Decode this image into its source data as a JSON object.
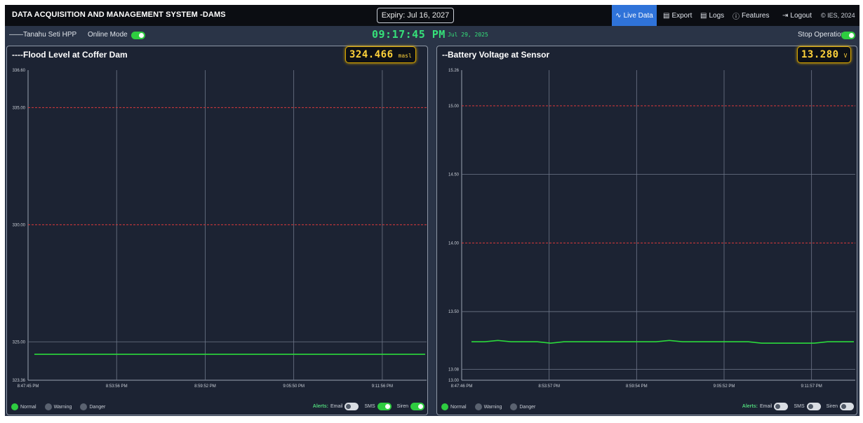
{
  "header": {
    "title": "DATA ACQUISITION AND MANAGEMENT SYSTEM -DAMS",
    "expiry": "Expiry: Jul 16, 2027",
    "nav": {
      "live": "Live Data",
      "export": "Export",
      "logs": "Logs",
      "features": "Features",
      "logout": "Logout",
      "copyright": "© IES, 2024"
    }
  },
  "subbar": {
    "station": "——Tanahu Seti HPP",
    "online_mode": "Online Mode",
    "online_mode_on": true,
    "time": "09:17:45 PM",
    "date": "Jul 29, 2025",
    "stop_operation": "Stop Operation",
    "stop_operation_on": true
  },
  "colors": {
    "normal": "#2ecc40",
    "warning": "#5a6270",
    "danger": "#5a6270",
    "series": "#2bd93b",
    "threshold": "#d9393c",
    "readout": "#ffd23a"
  },
  "panels": [
    {
      "title": "----Flood Level at Coffer Dam",
      "value": "324.466",
      "unit": "masl",
      "legend": [
        "Normal",
        "Warning",
        "Danger"
      ],
      "alerts": {
        "label": "Alerts:",
        "items": [
          {
            "label": "Email",
            "on": false
          },
          {
            "label": "SMS",
            "on": true
          },
          {
            "label": "Siren",
            "on": true
          }
        ]
      }
    },
    {
      "title": "--Battery Voltage at Sensor",
      "value": "13.280",
      "unit": "V",
      "legend": [
        "Normal",
        "Warning",
        "Danger"
      ],
      "alerts": {
        "label": "Alerts:",
        "items": [
          {
            "label": "Email",
            "on": false
          },
          {
            "label": "SMS",
            "on": false
          },
          {
            "label": "Siren",
            "on": false
          }
        ]
      }
    }
  ],
  "chart_data": [
    {
      "type": "line",
      "ylim": [
        323.36,
        336.6
      ],
      "y_ticks": [
        "336.60",
        "335.00",
        "330.00",
        "325.00",
        "323.36"
      ],
      "y_tick_values": [
        336.6,
        335.0,
        330.0,
        325.0,
        323.36
      ],
      "x_ticks": [
        "8:47:45 PM",
        "8:53:56 PM",
        "8:59:52 PM",
        "9:05:50 PM",
        "9:11:56 PM"
      ],
      "grid": true,
      "thresholds": [
        335.0,
        330.0
      ],
      "series": [
        {
          "values": [
            324.466,
            324.466,
            324.466,
            324.466,
            324.466,
            324.466,
            324.466
          ]
        }
      ]
    },
    {
      "type": "line",
      "ylim": [
        13.0,
        15.26
      ],
      "y_ticks": [
        "15.26",
        "15.00",
        "14.50",
        "14.00",
        "13.50",
        "13.08",
        "13.00"
      ],
      "y_tick_values": [
        15.26,
        15.0,
        14.5,
        14.0,
        13.5,
        13.08,
        13.0
      ],
      "x_ticks": [
        "8:47:46 PM",
        "8:53:57 PM",
        "8:59:54 PM",
        "9:05:52 PM",
        "9:11:57 PM"
      ],
      "grid": true,
      "thresholds": [
        15.0,
        14.0
      ],
      "series": [
        {
          "values": [
            13.28,
            13.28,
            13.29,
            13.28,
            13.28,
            13.28,
            13.27,
            13.28,
            13.28,
            13.28,
            13.28,
            13.28,
            13.28,
            13.28,
            13.28,
            13.29,
            13.28,
            13.28,
            13.28,
            13.28,
            13.28,
            13.28,
            13.27,
            13.27,
            13.27,
            13.27,
            13.27,
            13.28,
            13.28,
            13.28
          ]
        }
      ]
    }
  ]
}
